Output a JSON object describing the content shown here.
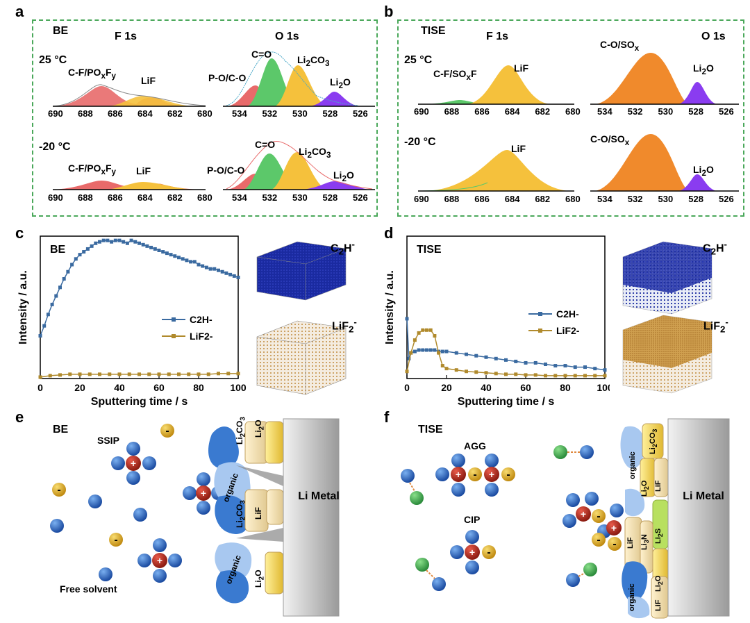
{
  "panels": {
    "a": "a",
    "b": "b",
    "c": "c",
    "d": "d",
    "e": "e",
    "f": "f"
  },
  "xps": {
    "a": {
      "tag": "BE",
      "f1s_title": "F 1s",
      "o1s_title": "O 1s",
      "temp_top": "25 °C",
      "temp_bot": "-20 °C",
      "f_ticks": [
        "690",
        "688",
        "686",
        "684",
        "682",
        "680"
      ],
      "o_ticks": [
        "534",
        "532",
        "530",
        "528",
        "526"
      ],
      "labels_top": {
        "cf": "C-F/POxFy",
        "lif": "LiF",
        "poco": "P-O/C-O",
        "co": "C=O",
        "li2co3": "Li2CO3",
        "li2o": "Li2O"
      },
      "labels_bot": {
        "cf": "C-F/POxFy",
        "lif": "LiF",
        "poco": "P-O/C-O",
        "co": "C=O",
        "li2co3": "Li2CO3",
        "li2o": "Li2O"
      }
    },
    "b": {
      "tag": "TISE",
      "f1s_title": "F 1s",
      "o1s_title": "O 1s",
      "temp_top": "25 °C",
      "temp_bot": "-20 °C",
      "f_ticks": [
        "690",
        "688",
        "686",
        "684",
        "682",
        "680"
      ],
      "o_ticks": [
        "534",
        "532",
        "530",
        "528",
        "526"
      ],
      "labels_top": {
        "cf": "C-F/SOxF",
        "lif": "LiF",
        "coso": "C-O/SOx",
        "li2o": "Li2O"
      },
      "labels_bot": {
        "lif": "LiF",
        "coso": "C-O/SOx",
        "li2o": "Li2O"
      }
    }
  },
  "colors": {
    "red": "#e86a6a",
    "green": "#5cc86a",
    "yellow": "#f5c13c",
    "purple": "#8a3cf0",
    "orange": "#f08a2c",
    "blue": "#3a6aa0",
    "gold": "#b08a2c",
    "dashed": "#4aa85a"
  },
  "chart_data": [
    {
      "type": "line",
      "panel": "c",
      "title": "BE",
      "xlabel": "Sputtering time / s",
      "ylabel": "Intensity / a.u.",
      "xlim": [
        0,
        100
      ],
      "xticks": [
        "0",
        "20",
        "40",
        "60",
        "80",
        "100"
      ],
      "series": [
        {
          "name": "C2H-",
          "color": "#3a6aa0",
          "x": [
            0,
            2,
            4,
            6,
            8,
            10,
            12,
            14,
            16,
            18,
            20,
            22,
            24,
            26,
            28,
            30,
            32,
            34,
            36,
            38,
            40,
            42,
            44,
            46,
            48,
            50,
            52,
            54,
            56,
            58,
            60,
            62,
            64,
            66,
            68,
            70,
            72,
            74,
            76,
            78,
            80,
            82,
            84,
            86,
            88,
            90,
            92,
            94,
            96,
            98,
            100
          ],
          "y": [
            0.3,
            0.37,
            0.45,
            0.52,
            0.58,
            0.64,
            0.7,
            0.75,
            0.8,
            0.84,
            0.87,
            0.89,
            0.91,
            0.93,
            0.95,
            0.96,
            0.97,
            0.97,
            0.96,
            0.97,
            0.97,
            0.96,
            0.95,
            0.97,
            0.96,
            0.95,
            0.94,
            0.93,
            0.92,
            0.91,
            0.9,
            0.89,
            0.88,
            0.87,
            0.86,
            0.85,
            0.84,
            0.83,
            0.82,
            0.82,
            0.8,
            0.79,
            0.78,
            0.77,
            0.77,
            0.76,
            0.75,
            0.74,
            0.73,
            0.72,
            0.71
          ]
        },
        {
          "name": "LiF2-",
          "color": "#b08a2c",
          "x": [
            0,
            5,
            10,
            15,
            20,
            25,
            30,
            35,
            40,
            45,
            50,
            55,
            60,
            65,
            70,
            75,
            80,
            85,
            90,
            95,
            100
          ],
          "y": [
            0.01,
            0.02,
            0.025,
            0.03,
            0.03,
            0.03,
            0.03,
            0.03,
            0.03,
            0.03,
            0.03,
            0.03,
            0.03,
            0.03,
            0.03,
            0.03,
            0.03,
            0.03,
            0.035,
            0.035,
            0.035
          ]
        }
      ]
    },
    {
      "type": "line",
      "panel": "d",
      "title": "TISE",
      "xlabel": "Sputtering time / s",
      "ylabel": "Intensity / a.u.",
      "xlim": [
        0,
        100
      ],
      "xticks": [
        "0",
        "20",
        "40",
        "60",
        "80",
        "100"
      ],
      "series": [
        {
          "name": "C2H-",
          "color": "#3a6aa0",
          "x": [
            0,
            1,
            2,
            4,
            6,
            8,
            10,
            12,
            14,
            16,
            18,
            20,
            25,
            30,
            35,
            40,
            45,
            50,
            55,
            60,
            65,
            70,
            75,
            80,
            85,
            90,
            95,
            100
          ],
          "y": [
            0.42,
            0.14,
            0.18,
            0.19,
            0.2,
            0.2,
            0.2,
            0.2,
            0.2,
            0.19,
            0.19,
            0.19,
            0.18,
            0.17,
            0.16,
            0.15,
            0.14,
            0.13,
            0.12,
            0.11,
            0.11,
            0.1,
            0.09,
            0.09,
            0.08,
            0.08,
            0.07,
            0.06
          ]
        },
        {
          "name": "LiF2-",
          "color": "#b08a2c",
          "x": [
            0,
            2,
            4,
            6,
            8,
            10,
            12,
            14,
            16,
            18,
            20,
            25,
            30,
            35,
            40,
            45,
            50,
            55,
            60,
            65,
            70,
            75,
            80,
            85,
            90,
            95,
            100
          ],
          "y": [
            0.05,
            0.18,
            0.27,
            0.32,
            0.34,
            0.34,
            0.34,
            0.3,
            0.18,
            0.09,
            0.07,
            0.06,
            0.05,
            0.045,
            0.04,
            0.035,
            0.03,
            0.03,
            0.025,
            0.025,
            0.02,
            0.02,
            0.02,
            0.02,
            0.02,
            0.02,
            0.02
          ]
        }
      ]
    }
  ],
  "tof": {
    "c": {
      "top": "C2H-",
      "bot": "LiF2-"
    },
    "d": {
      "top": "C2H-",
      "bot": "LiF2-"
    }
  },
  "scheme_e": {
    "tag": "BE",
    "ssip": "SSIP",
    "free_solvent": "Free solvent",
    "metal": "Li Metal",
    "layers": [
      "Li2CO3",
      "Li2O",
      "organic",
      "Li2CO3",
      "LiF",
      "organic",
      "Li2O"
    ]
  },
  "scheme_f": {
    "tag": "TISE",
    "agg": "AGG",
    "cip": "CIP",
    "metal": "Li Metal",
    "layers": [
      "organic",
      "Li2CO3",
      "Li2O",
      "LiF",
      "Li2S",
      "LiF",
      "Li3N",
      "Li2O",
      "organic",
      "LiF"
    ]
  }
}
